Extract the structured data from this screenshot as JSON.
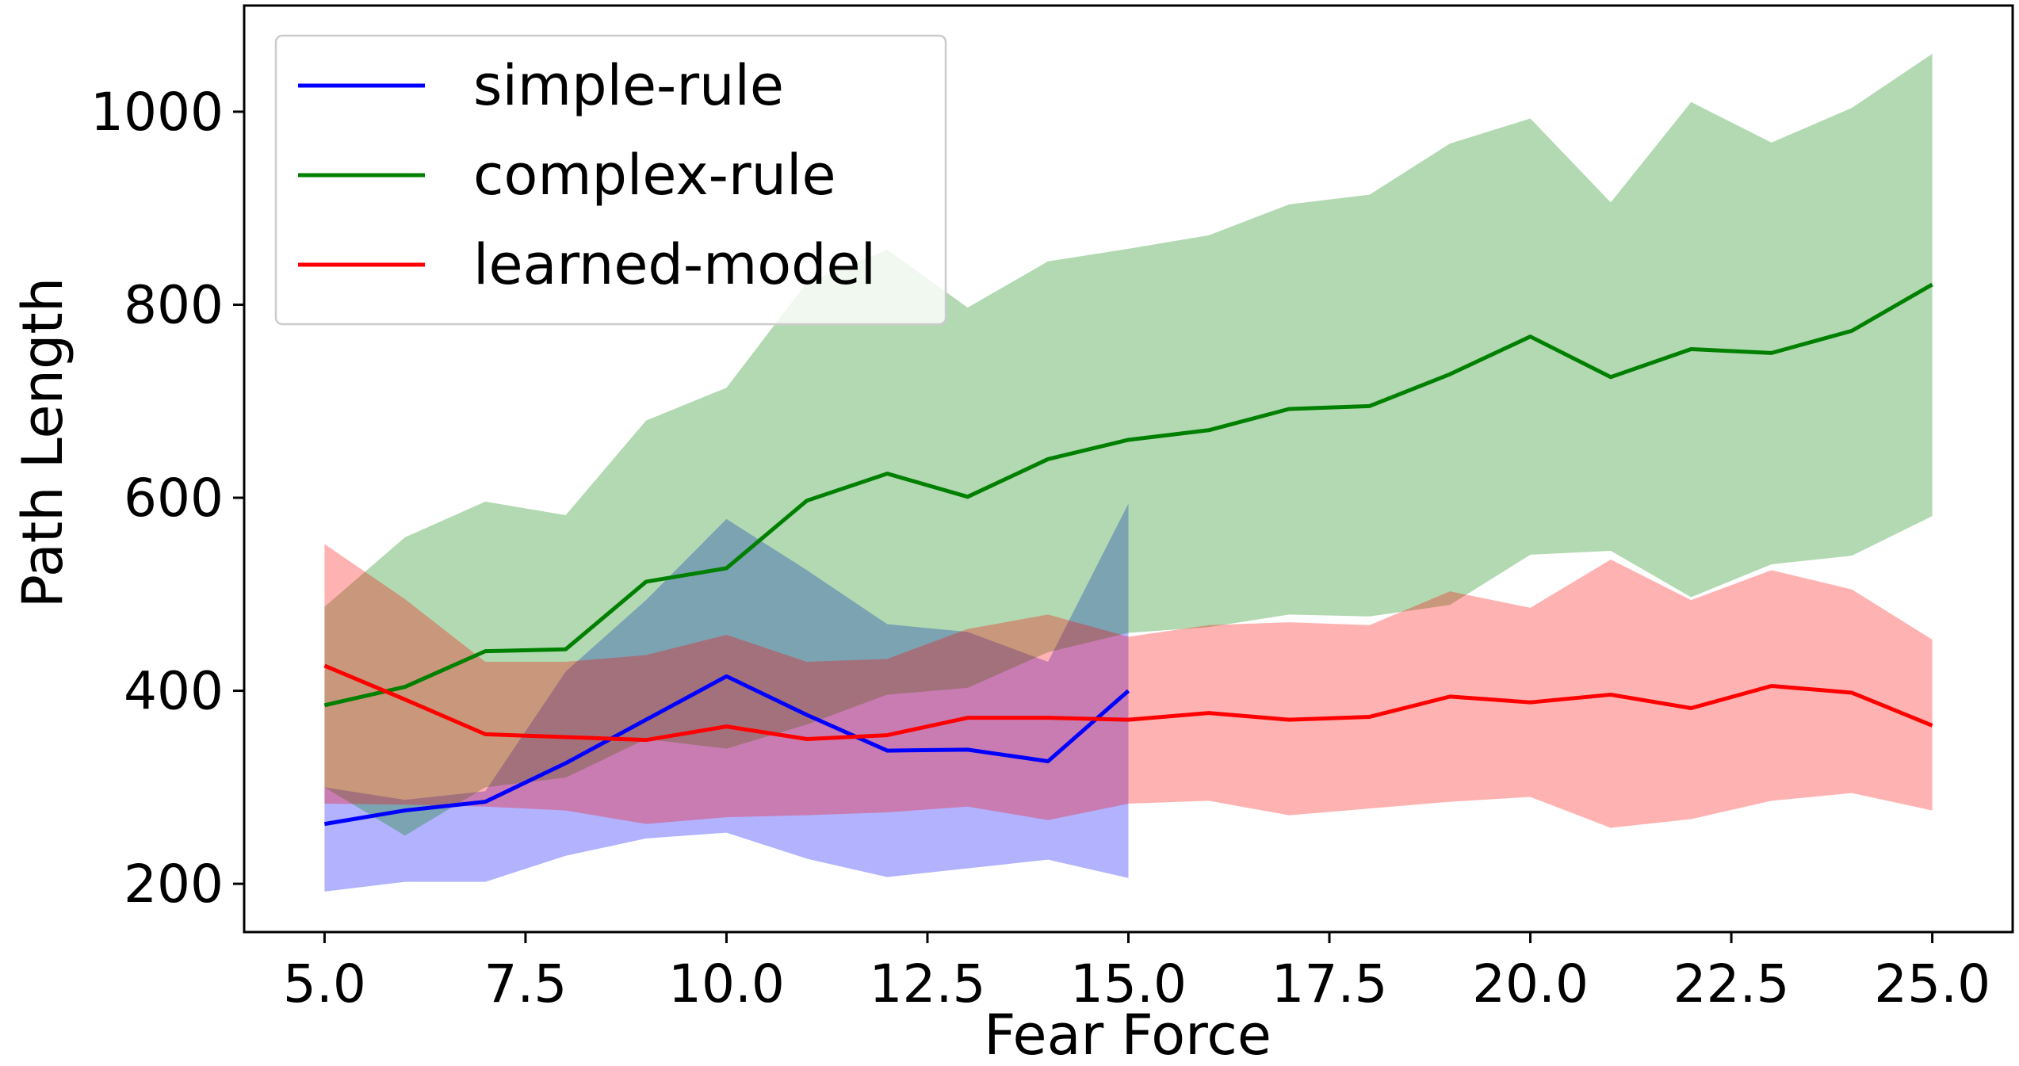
{
  "chart_data": {
    "type": "line",
    "title": "",
    "xlabel": "Fear Force",
    "ylabel": "Path Length",
    "xlim": [
      4.0,
      26.0
    ],
    "ylim": [
      150,
      1110
    ],
    "xticks": [
      5.0,
      7.5,
      10.0,
      12.5,
      15.0,
      17.5,
      20.0,
      22.5,
      25.0
    ],
    "xtick_labels": [
      "5.0",
      "7.5",
      "10.0",
      "12.5",
      "15.0",
      "17.5",
      "20.0",
      "22.5",
      "25.0"
    ],
    "yticks": [
      200,
      400,
      600,
      800,
      1000
    ],
    "ytick_labels": [
      "200",
      "400",
      "600",
      "800",
      "1000"
    ],
    "grid": false,
    "legend_position": "top-left",
    "series": [
      {
        "name": "simple-rule",
        "color": "#0000ff",
        "fill_color": "#0000ff",
        "x": [
          5,
          6,
          7,
          8,
          9,
          10,
          11,
          12,
          13,
          14,
          15
        ],
        "y": [
          262,
          276,
          285,
          325,
          370,
          415,
          375,
          338,
          339,
          327,
          400
        ],
        "lower": [
          192,
          202,
          202,
          229,
          247,
          253,
          226,
          207,
          216,
          225,
          206
        ],
        "upper": [
          300,
          287,
          296,
          420,
          494,
          578,
          525,
          469,
          461,
          430,
          594
        ]
      },
      {
        "name": "complex-rule",
        "color": "#008000",
        "fill_color": "#008000",
        "x": [
          5,
          6,
          7,
          8,
          9,
          10,
          11,
          12,
          13,
          14,
          15,
          16,
          17,
          18,
          19,
          20,
          21,
          22,
          23,
          24,
          25
        ],
        "y": [
          385,
          404,
          441,
          443,
          513,
          527,
          597,
          625,
          601,
          640,
          660,
          670,
          692,
          695,
          728,
          767,
          725,
          754,
          750,
          773,
          821
        ],
        "lower": [
          300,
          250,
          300,
          310,
          350,
          340,
          365,
          396,
          403,
          440,
          460,
          466,
          479,
          477,
          489,
          541,
          545,
          497,
          531,
          540,
          581
        ],
        "upper": [
          487,
          559,
          596,
          582,
          680,
          714,
          823,
          857,
          797,
          845,
          858,
          872,
          904,
          914,
          967,
          993,
          906,
          1010,
          968,
          1004,
          1060
        ]
      },
      {
        "name": "learned-model",
        "color": "#ff0000",
        "fill_color": "#ff0000",
        "x": [
          5,
          6,
          7,
          8,
          9,
          10,
          11,
          12,
          13,
          14,
          15,
          16,
          17,
          18,
          19,
          20,
          21,
          22,
          23,
          24,
          25
        ],
        "y": [
          426,
          391,
          355,
          352,
          349,
          363,
          350,
          354,
          372,
          372,
          370,
          377,
          370,
          373,
          394,
          388,
          396,
          382,
          405,
          398,
          364
        ],
        "lower": [
          283,
          282,
          280,
          276,
          262,
          269,
          271,
          274,
          280,
          266,
          283,
          286,
          271,
          278,
          285,
          290,
          258,
          267,
          286,
          294,
          276
        ],
        "upper": [
          552,
          495,
          430,
          430,
          437,
          458,
          430,
          433,
          464,
          479,
          456,
          468,
          471,
          468,
          503,
          486,
          536,
          494,
          525,
          505,
          453
        ]
      }
    ]
  }
}
